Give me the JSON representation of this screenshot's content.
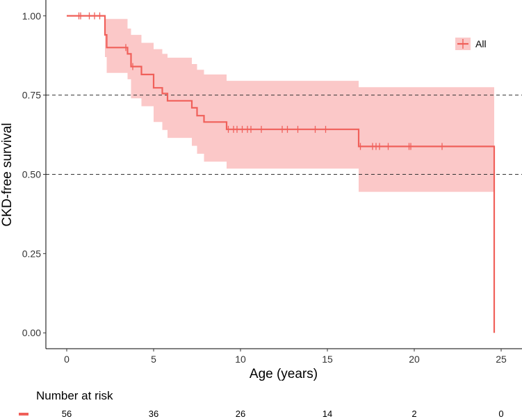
{
  "chart_data": {
    "type": "line",
    "subtype": "kaplan-meier",
    "title": "",
    "xlabel": "Age (years)",
    "ylabel": "CKD-free survival",
    "xlim": [
      -1.2,
      26.2
    ],
    "ylim": [
      -0.05,
      1.05
    ],
    "x_ticks": [
      0,
      5,
      10,
      15,
      20,
      25
    ],
    "x_tick_labels": [
      "0",
      "5",
      "10",
      "15",
      "20",
      "25"
    ],
    "y_ticks": [
      0,
      0.25,
      0.5,
      0.75,
      1.0
    ],
    "y_tick_labels": [
      "0.00",
      "0.25",
      "0.50",
      "0.75",
      "1.00"
    ],
    "reference_lines": [
      0.75,
      0.5
    ],
    "legend": {
      "entries": [
        "All"
      ],
      "position": "top-right"
    },
    "colors": {
      "series": "#f0605a",
      "band": "#fbc8c8",
      "reference": "#333333"
    },
    "series": [
      {
        "name": "All",
        "step_x": [
          0,
          2.2,
          2.3,
          3.5,
          3.7,
          4.3,
          5.0,
          5.5,
          5.8,
          7.2,
          7.5,
          7.9,
          9.2,
          16.8,
          24.6,
          24.6
        ],
        "survival": [
          1.0,
          0.94,
          0.9,
          0.88,
          0.84,
          0.815,
          0.773,
          0.755,
          0.732,
          0.71,
          0.685,
          0.665,
          0.642,
          0.588,
          0.588,
          0.0
        ],
        "lower": [
          1.0,
          0.87,
          0.82,
          0.8,
          0.74,
          0.715,
          0.665,
          0.64,
          0.615,
          0.59,
          0.565,
          0.54,
          0.518,
          0.445,
          0.445,
          0.445
        ],
        "upper": [
          1.0,
          0.99,
          0.99,
          0.96,
          0.94,
          0.915,
          0.895,
          0.88,
          0.868,
          0.848,
          0.83,
          0.815,
          0.795,
          0.775,
          0.775,
          0.775
        ],
        "censored": [
          0.7,
          0.8,
          1.3,
          1.6,
          1.9,
          3.4,
          3.8,
          9.3,
          9.6,
          9.8,
          10.1,
          10.4,
          10.6,
          11.2,
          12.4,
          12.7,
          13.3,
          14.3,
          14.9,
          16.9,
          17.6,
          17.8,
          18.0,
          18.5,
          19.7,
          19.8,
          21.6
        ]
      }
    ],
    "risk_table": {
      "title": "Number at risk",
      "times": [
        0,
        5,
        10,
        15,
        20,
        25
      ],
      "values": [
        "56",
        "36",
        "26",
        "14",
        "2",
        "0"
      ]
    }
  }
}
